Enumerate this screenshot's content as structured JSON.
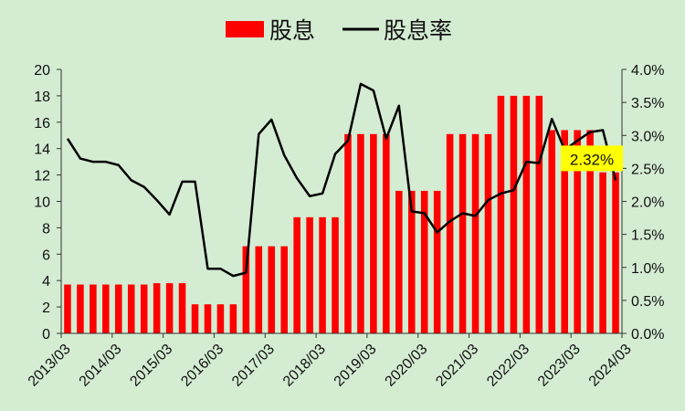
{
  "chart_data": {
    "type": "bar",
    "title": "",
    "xlabel": "",
    "ylabel": "",
    "x_tick_labels": [
      "2013/03",
      "2014/03",
      "2015/03",
      "2016/03",
      "2017/03",
      "2018/03",
      "2019/03",
      "2020/03",
      "2021/03",
      "2022/03",
      "2023/03",
      "2024/03"
    ],
    "ylim": [
      0,
      20
    ],
    "y_ticks": [
      0,
      2,
      4,
      6,
      8,
      10,
      12,
      14,
      16,
      18,
      20
    ],
    "y2lim": [
      0,
      4.0
    ],
    "y2_tick_labels": [
      "0.0%",
      "0.5%",
      "1.0%",
      "1.5%",
      "2.0%",
      "2.5%",
      "3.0%",
      "3.5%",
      "4.0%"
    ],
    "legend": "top-center",
    "grid": false,
    "series": [
      {
        "name": "股息",
        "type": "bar",
        "axis": "left",
        "color": "#ff0000",
        "values": [
          3.7,
          3.7,
          3.7,
          3.7,
          3.7,
          3.7,
          3.7,
          3.8,
          3.8,
          3.8,
          2.2,
          2.2,
          2.2,
          2.2,
          6.6,
          6.6,
          6.6,
          6.6,
          8.8,
          8.8,
          8.8,
          8.8,
          15.1,
          15.1,
          15.1,
          15.1,
          10.8,
          10.8,
          10.8,
          10.8,
          15.1,
          15.1,
          15.1,
          15.1,
          18.0,
          18.0,
          18.0,
          18.0,
          15.4,
          15.4,
          15.4,
          15.4,
          12.2,
          12.2
        ]
      },
      {
        "name": "股息率",
        "type": "line",
        "axis": "right",
        "color": "#000000",
        "x_index": [
          0,
          1,
          2,
          3,
          4,
          5,
          6,
          7,
          8,
          9,
          10,
          11,
          12,
          13,
          14,
          15,
          16,
          17,
          18,
          19,
          20,
          21,
          22,
          23,
          24,
          25,
          26,
          27,
          28,
          29,
          30,
          31,
          32,
          33,
          34,
          35,
          36,
          37,
          38,
          39,
          40,
          41,
          42,
          43
        ],
        "values": [
          2.95,
          2.65,
          2.6,
          2.6,
          2.55,
          2.32,
          2.22,
          2.02,
          1.8,
          2.3,
          2.3,
          0.98,
          0.98,
          0.87,
          0.92,
          3.02,
          3.24,
          2.7,
          2.35,
          2.08,
          2.12,
          2.72,
          2.92,
          3.78,
          3.68,
          2.95,
          3.45,
          1.85,
          1.82,
          1.53,
          1.7,
          1.82,
          1.78,
          2.02,
          2.12,
          2.17,
          2.6,
          2.58,
          3.25,
          2.78,
          2.92,
          3.05,
          3.08,
          2.32
        ]
      }
    ],
    "annotations": [
      {
        "text": "2.32%",
        "x_index": 43,
        "value": 2.32,
        "background": "#ffff00"
      }
    ]
  }
}
